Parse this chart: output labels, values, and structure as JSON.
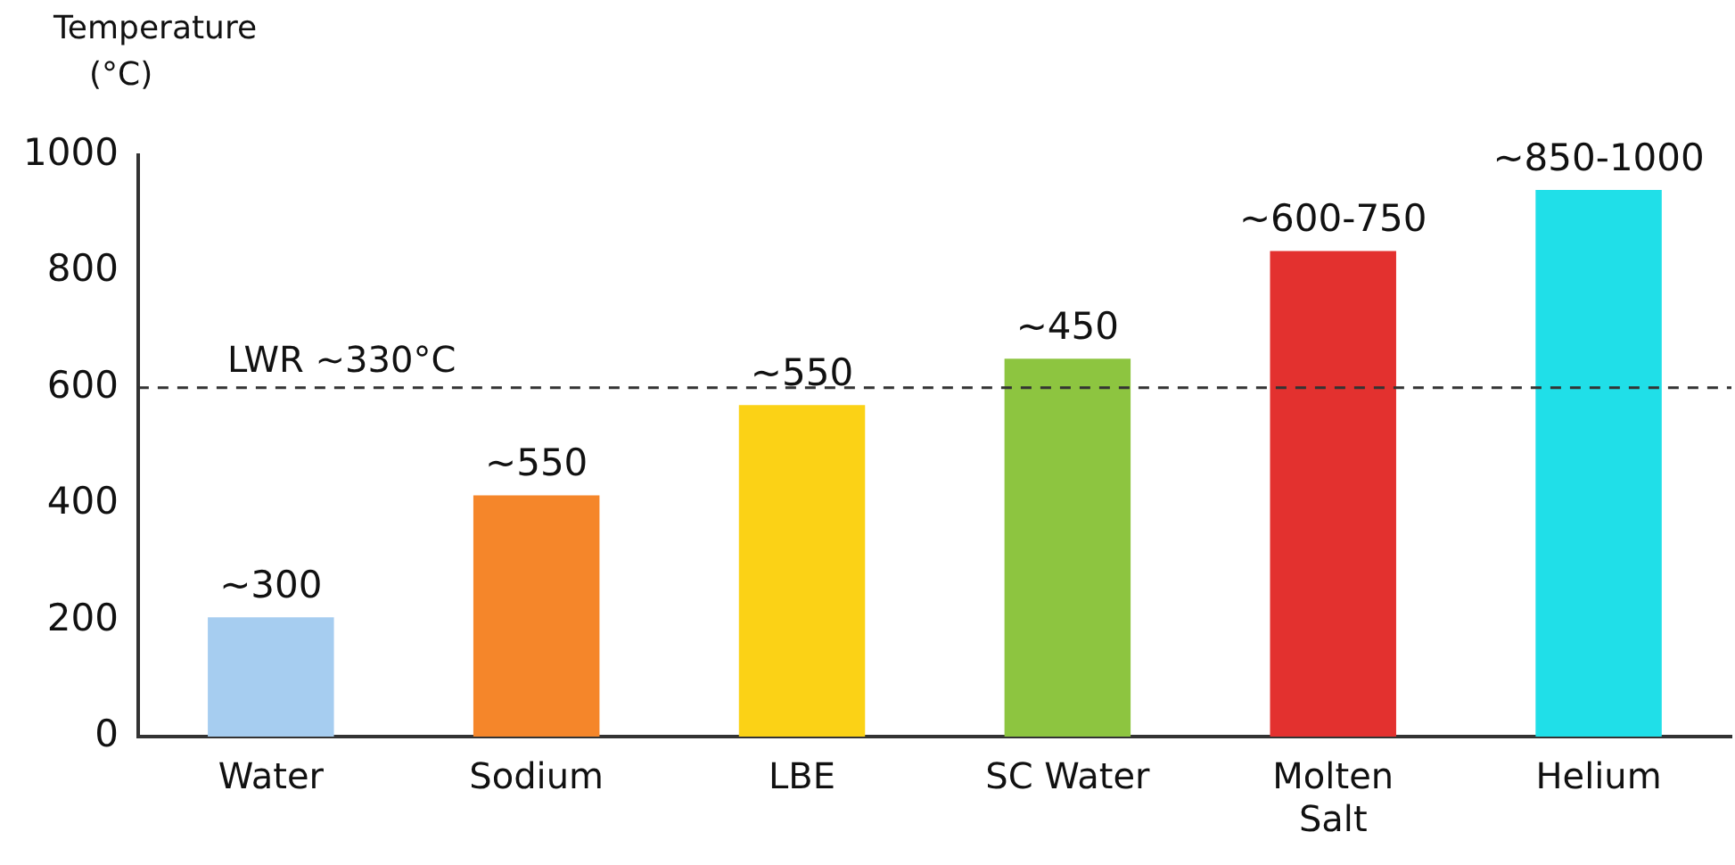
{
  "chart_data": {
    "type": "bar",
    "ylabel": "Temperature\n(°C)",
    "categories": [
      "Water",
      "Sodium",
      "LBE",
      "SC Water",
      "Molten Salt",
      "Helium"
    ],
    "values": [
      205,
      415,
      570,
      650,
      835,
      940
    ],
    "colors": [
      "#a6cdf0",
      "#f5862a",
      "#fbd216",
      "#8dc540",
      "#e3312f",
      "#20dfe8"
    ],
    "annotations": [
      {
        "text": "~300",
        "x": "Water",
        "y": 205
      },
      {
        "text": "~550",
        "x": "Sodium",
        "y": 415
      },
      {
        "text": "~550",
        "x": "LBE",
        "y": 570
      },
      {
        "text": "~450",
        "x": "SC Water",
        "y": 650
      },
      {
        "text": "~600-750",
        "x": "Molten Salt",
        "y": 835
      },
      {
        "text": "~850-1000",
        "x": "Helium",
        "y": 940
      }
    ],
    "ylim": [
      0,
      1000
    ],
    "yticks": [
      0,
      200,
      400,
      600,
      800,
      1000
    ],
    "grid": false,
    "legend": false,
    "ref_lines": [
      {
        "axis": "y",
        "value": 600,
        "label": "LWR ~330°C",
        "color": "#333333",
        "line_style": "dashed"
      }
    ]
  }
}
